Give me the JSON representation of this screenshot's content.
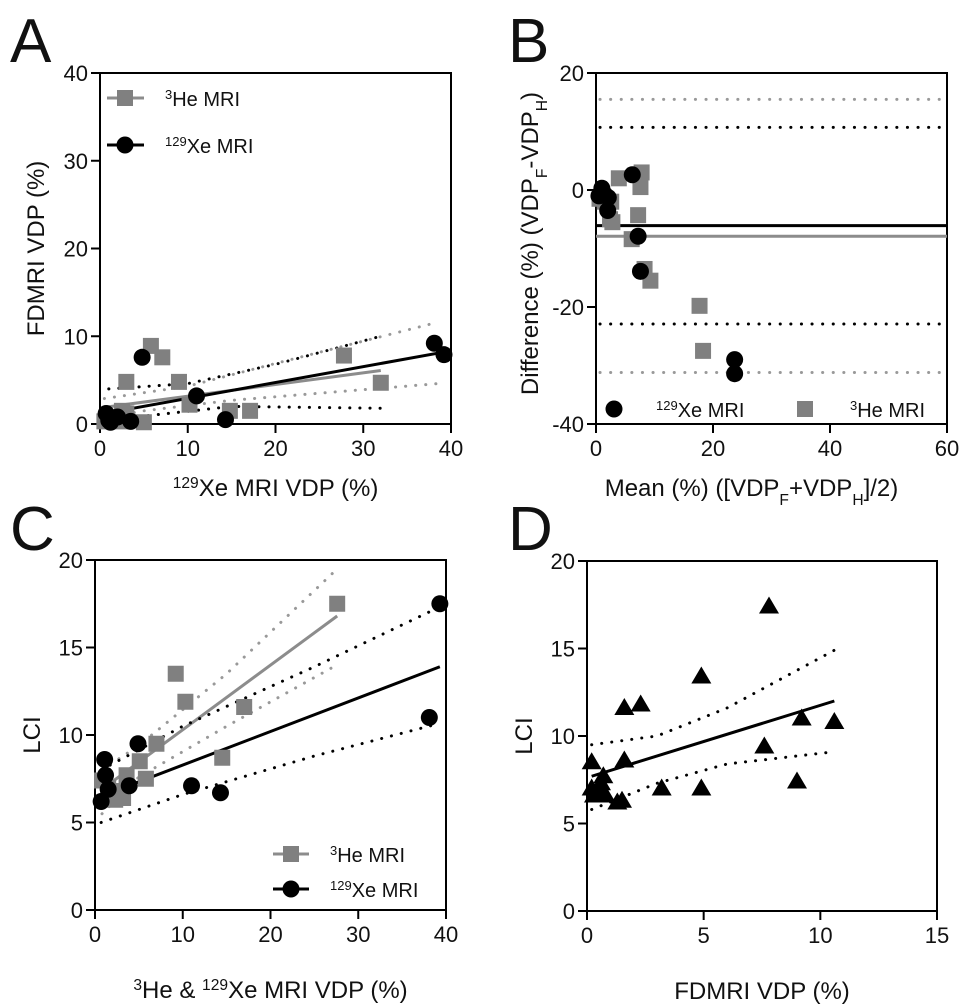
{
  "colors": {
    "xe": "#000000",
    "he": "#808080",
    "he_line": "#8c8c8c"
  },
  "chart_data": [
    {
      "panel": "A",
      "type": "scatter",
      "xlabel": {
        "sup": "129",
        "text": "Xe MRI VDP (%)"
      },
      "ylabel": "FDMRI VDP (%)",
      "xlim": [
        0,
        40
      ],
      "ylim": [
        0,
        40
      ],
      "xticks": [
        "0",
        "10",
        "20",
        "30",
        "40"
      ],
      "yticks": [
        "0",
        "10",
        "20",
        "30",
        "40"
      ],
      "legend": [
        {
          "sup": "3",
          "label": "He MRI",
          "marker": "square"
        },
        {
          "sup": "129",
          "label": "Xe MRI",
          "marker": "circle"
        }
      ],
      "legend_position": "top-left",
      "series": [
        {
          "name": "3He MRI",
          "marker": "square",
          "points": [
            [
              0.5,
              0.3
            ],
            [
              1,
              0.5
            ],
            [
              1.5,
              0.8
            ],
            [
              2,
              0.5
            ],
            [
              2.5,
              0.3
            ],
            [
              2.5,
              1.5
            ],
            [
              3,
              1.2
            ],
            [
              3,
              4.8
            ],
            [
              5,
              0.2
            ],
            [
              5.8,
              8.9
            ],
            [
              7.1,
              7.6
            ],
            [
              9,
              4.8
            ],
            [
              10.2,
              2.2
            ],
            [
              14.8,
              1.5
            ],
            [
              17.1,
              1.5
            ],
            [
              27.8,
              7.8
            ],
            [
              32,
              4.7
            ]
          ],
          "fit": {
            "x": [
              0.5,
              32
            ],
            "y": [
              1.9,
              6.1
            ]
          },
          "ci_upper": {
            "x": [
              0.5,
              10,
              20,
              38.5
            ],
            "y": [
              2.9,
              4.3,
              6.9,
              11.6
            ]
          },
          "ci_lower": {
            "x": [
              0.5,
              5,
              15,
              38.5
            ],
            "y": [
              0.7,
              1.5,
              2.7,
              4.6
            ]
          }
        },
        {
          "name": "129Xe MRI",
          "marker": "circle",
          "points": [
            [
              0.7,
              1.2
            ],
            [
              1,
              0.4
            ],
            [
              1.2,
              0.2
            ],
            [
              2,
              0.8
            ],
            [
              3.5,
              0.3
            ],
            [
              4.8,
              7.6
            ],
            [
              11,
              3.2
            ],
            [
              14.3,
              0.5
            ],
            [
              38.1,
              9.2
            ],
            [
              39.2,
              7.9
            ]
          ],
          "fit": {
            "x": [
              0.5,
              39.2
            ],
            "y": [
              1.2,
              8.2
            ]
          },
          "ci_upper": {
            "x": [
              1,
              10,
              20,
              32
            ],
            "y": [
              4.0,
              4.6,
              6.8,
              10.0
            ]
          },
          "ci_lower": {
            "x": [
              1,
              5,
              15,
              32
            ],
            "y": [
              0.0,
              0.9,
              2.0,
              1.8
            ]
          }
        }
      ]
    },
    {
      "panel": "B",
      "type": "scatter",
      "xlabel": "Mean (%) ([VDP_F+VDP_H]/2)",
      "ylabel": "Difference (%) (VDP_F-VDP_H)",
      "xlim": [
        0,
        60
      ],
      "ylim": [
        -40,
        20
      ],
      "xticks": [
        "0",
        "20",
        "40",
        "60"
      ],
      "yticks": [
        "-40",
        "-20",
        "0",
        "20"
      ],
      "legend": [
        {
          "sup": "129",
          "label": "Xe MRI",
          "marker": "circle"
        },
        {
          "sup": "3",
          "label": "He MRI",
          "marker": "square"
        }
      ],
      "legend_position": "bottom",
      "series": [
        {
          "name": "3He MRI",
          "marker": "square",
          "points": [
            [
              0.6,
              -1.5
            ],
            [
              1.5,
              -2
            ],
            [
              2.6,
              -2
            ],
            [
              2.4,
              -5
            ],
            [
              2.8,
              -5.5
            ],
            [
              3.9,
              2
            ],
            [
              7.8,
              3
            ],
            [
              7.6,
              0.5
            ],
            [
              7.2,
              -4.3
            ],
            [
              6.1,
              -8.4
            ],
            [
              8.3,
              -13.5
            ],
            [
              9.3,
              -15.5
            ],
            [
              17.7,
              -19.8
            ],
            [
              18.3,
              -27.5
            ]
          ],
          "bias": -7.9,
          "loa_upper": 15.5,
          "loa_lower": -31.2
        },
        {
          "name": "129Xe MRI",
          "marker": "circle",
          "points": [
            [
              0.5,
              -1
            ],
            [
              1,
              0.3
            ],
            [
              1.5,
              -0.8
            ],
            [
              2.1,
              -1.3
            ],
            [
              2,
              -3.5
            ],
            [
              6.2,
              2.6
            ],
            [
              7.2,
              -7.9
            ],
            [
              7.6,
              -13.9
            ],
            [
              23.7,
              -29
            ],
            [
              23.7,
              -31.4
            ]
          ],
          "bias": -6.1,
          "loa_upper": 10.7,
          "loa_lower": -22.9
        }
      ]
    },
    {
      "panel": "C",
      "type": "scatter",
      "xlabel": {
        "sup1": "3",
        "text1": "He & ",
        "sup2": "129",
        "text2": "Xe MRI VDP (%)"
      },
      "ylabel": "LCI",
      "xlim": [
        0,
        40
      ],
      "ylim": [
        0,
        20
      ],
      "xticks": [
        "0",
        "10",
        "20",
        "30",
        "40"
      ],
      "yticks": [
        "0",
        "5",
        "10",
        "15",
        "20"
      ],
      "legend": [
        {
          "sup": "3",
          "label": "He MRI",
          "marker": "square"
        },
        {
          "sup": "129",
          "label": "Xe MRI",
          "marker": "circle"
        }
      ],
      "legend_position": "bottom-right",
      "series": [
        {
          "name": "3He MRI",
          "marker": "square",
          "points": [
            [
              0.8,
              7.4
            ],
            [
              1.5,
              7.0
            ],
            [
              2,
              6.5
            ],
            [
              2.3,
              6.3
            ],
            [
              2.8,
              6.8
            ],
            [
              3.2,
              6.4
            ],
            [
              3.6,
              7.7
            ],
            [
              5.1,
              8.5
            ],
            [
              5.8,
              7.5
            ],
            [
              7,
              9.5
            ],
            [
              9.2,
              13.5
            ],
            [
              10.3,
              11.9
            ],
            [
              14.5,
              8.7
            ],
            [
              17,
              11.6
            ],
            [
              27.6,
              17.5
            ]
          ],
          "fit": {
            "x": [
              0.8,
              27.6
            ],
            "y": [
              6.9,
              16.8
            ]
          },
          "ci_upper": {
            "x": [
              0.8,
              5,
              15,
              27.2
            ],
            "y": [
              8.0,
              9.4,
              13.5,
              19.3
            ]
          },
          "ci_lower": {
            "x": [
              0.8,
              5,
              15,
              27.2
            ],
            "y": [
              5.5,
              7.6,
              10.5,
              13.9
            ]
          }
        },
        {
          "name": "129Xe MRI",
          "marker": "circle",
          "points": [
            [
              0.7,
              6.2
            ],
            [
              1.1,
              8.6
            ],
            [
              1.2,
              7.7
            ],
            [
              1.5,
              6.9
            ],
            [
              3.9,
              7.1
            ],
            [
              4.9,
              9.5
            ],
            [
              11,
              7.1
            ],
            [
              14.3,
              6.7
            ],
            [
              38.1,
              11
            ],
            [
              39.3,
              17.5
            ]
          ],
          "fit": {
            "x": [
              0.7,
              39.3
            ],
            "y": [
              6.5,
              13.9
            ]
          },
          "ci_upper": {
            "x": [
              0.7,
              10,
              25,
              38.8
            ],
            "y": [
              8.0,
              10.5,
              13.9,
              17.2
            ]
          },
          "ci_lower": {
            "x": [
              0.7,
              10,
              25,
              38.8
            ],
            "y": [
              5.0,
              6.6,
              8.8,
              10.6
            ]
          }
        }
      ]
    },
    {
      "panel": "D",
      "type": "scatter",
      "xlabel": "FDMRI VDP (%)",
      "ylabel": "LCI",
      "xlim": [
        0,
        15
      ],
      "ylim": [
        0,
        20
      ],
      "xticks": [
        "0",
        "5",
        "10",
        "15"
      ],
      "yticks": [
        "0",
        "5",
        "10",
        "15",
        "20"
      ],
      "series": [
        {
          "name": "FDMRI",
          "marker": "triangle",
          "points": [
            [
              0.2,
              8.5
            ],
            [
              0.2,
              7.0
            ],
            [
              0.3,
              6.6
            ],
            [
              0.5,
              6.8
            ],
            [
              0.6,
              7.3
            ],
            [
              0.7,
              7.7
            ],
            [
              0.8,
              6.6
            ],
            [
              1.3,
              6.2
            ],
            [
              1.5,
              6.3
            ],
            [
              1.6,
              8.6
            ],
            [
              1.6,
              11.6
            ],
            [
              2.3,
              11.8
            ],
            [
              3.2,
              7.0
            ],
            [
              4.9,
              13.4
            ],
            [
              4.9,
              7.0
            ],
            [
              7.6,
              9.4
            ],
            [
              7.8,
              17.4
            ],
            [
              9.0,
              7.4
            ],
            [
              9.2,
              11.0
            ],
            [
              10.6,
              10.8
            ]
          ],
          "fit": {
            "x": [
              0.2,
              10.6
            ],
            "y": [
              7.7,
              12.0
            ]
          },
          "ci_upper": {
            "x": [
              0.2,
              3,
              6,
              10.6
            ],
            "y": [
              9.5,
              10.0,
              11.6,
              14.9
            ]
          },
          "ci_lower": {
            "x": [
              0.2,
              3,
              6,
              10.6
            ],
            "y": [
              5.8,
              7.3,
              8.4,
              9.1
            ]
          }
        }
      ]
    }
  ]
}
